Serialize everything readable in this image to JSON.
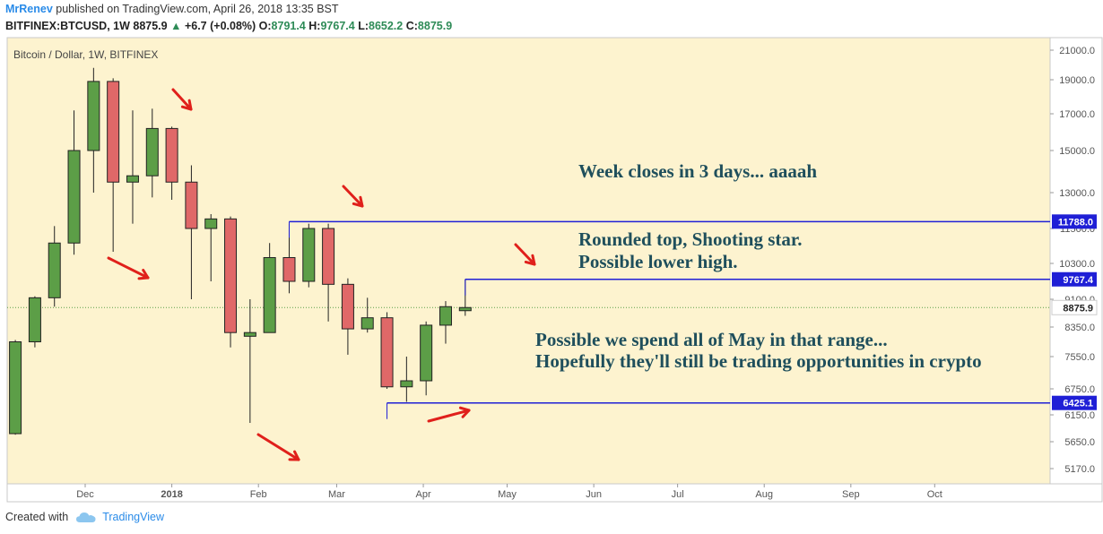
{
  "header": {
    "user": "MrRenev",
    "published": "published on TradingView.com, April 26, 2018 13:35 BST",
    "symbol": "BITFINEX:BTCUSD, 1W",
    "price": "8875.9",
    "change": "+6.7 (+0.08%)",
    "o_label": "O:",
    "o": "8791.4",
    "h_label": "H:",
    "h": "9767.4",
    "l_label": "L:",
    "l": "8652.2",
    "c_label": "C:",
    "c": "8875.9"
  },
  "footer": {
    "created_with": "Created with",
    "brand": "TradingView"
  },
  "colors": {
    "background": "#fdf3cf",
    "up": "#5c9e47",
    "down": "#e06868",
    "level_line": "#1f1fd6",
    "annotation_text": "#1f4f5c",
    "arrow": "#e0201b"
  },
  "chart_data": {
    "type": "candlestick",
    "title": "Bitcoin / Dollar, 1W, BITFINEX",
    "y_ticks": [
      5170,
      5650,
      6150,
      6750,
      7550,
      8350,
      9100,
      10300,
      11500,
      13000,
      15000,
      17000,
      19000,
      21000
    ],
    "y_tick_labels": [
      "5170.0",
      "5650.0",
      "6150.0",
      "6750.0",
      "7550.0",
      "8350.0",
      "9100.0",
      "10300.0",
      "11500.0",
      "13000.0",
      "15000.0",
      "17000.0",
      "19000.0",
      "21000.0"
    ],
    "x_labels": [
      {
        "label": "Dec",
        "date": "2017-12-01"
      },
      {
        "label": "2018",
        "date": "2018-01-01"
      },
      {
        "label": "Feb",
        "date": "2018-02-01"
      },
      {
        "label": "Mar",
        "date": "2018-03-01"
      },
      {
        "label": "Apr",
        "date": "2018-04-01"
      },
      {
        "label": "May",
        "date": "2018-05-01"
      },
      {
        "label": "Jun",
        "date": "2018-06-01"
      },
      {
        "label": "Jul",
        "date": "2018-07-01"
      },
      {
        "label": "Aug",
        "date": "2018-08-01"
      },
      {
        "label": "Sep",
        "date": "2018-09-01"
      },
      {
        "label": "Oct",
        "date": "2018-10-01"
      }
    ],
    "candles": [
      {
        "date": "2017-11-06",
        "open": 5800,
        "high": 8000,
        "low": 5780,
        "close": 7950
      },
      {
        "date": "2017-11-13",
        "open": 7950,
        "high": 9200,
        "low": 7800,
        "close": 9150
      },
      {
        "date": "2017-11-20",
        "open": 9150,
        "high": 11600,
        "low": 8900,
        "close": 11000
      },
      {
        "date": "2017-11-27",
        "open": 11000,
        "high": 17200,
        "low": 10600,
        "close": 15000
      },
      {
        "date": "2017-12-04",
        "open": 15000,
        "high": 19800,
        "low": 13000,
        "close": 18900
      },
      {
        "date": "2017-12-11",
        "open": 18900,
        "high": 19100,
        "low": 10700,
        "close": 13500
      },
      {
        "date": "2017-12-18",
        "open": 13500,
        "high": 17200,
        "low": 11700,
        "close": 13800
      },
      {
        "date": "2017-12-25",
        "open": 13800,
        "high": 17300,
        "low": 12800,
        "close": 16200
      },
      {
        "date": "2018-01-01",
        "open": 16200,
        "high": 16300,
        "low": 12700,
        "close": 13500
      },
      {
        "date": "2018-01-08",
        "open": 13500,
        "high": 14300,
        "low": 9100,
        "close": 11500
      },
      {
        "date": "2018-01-15",
        "open": 11500,
        "high": 12100,
        "low": 9700,
        "close": 11900
      },
      {
        "date": "2018-01-22",
        "open": 11900,
        "high": 12000,
        "low": 7800,
        "close": 8200
      },
      {
        "date": "2018-01-29",
        "open": 8100,
        "high": 9100,
        "low": 6000,
        "close": 8200
      },
      {
        "date": "2018-02-05",
        "open": 8200,
        "high": 11000,
        "low": 8200,
        "close": 10500
      },
      {
        "date": "2018-02-12",
        "open": 10500,
        "high": 11700,
        "low": 9300,
        "close": 9700
      },
      {
        "date": "2018-02-19",
        "open": 9700,
        "high": 11700,
        "low": 9500,
        "close": 11500
      },
      {
        "date": "2018-02-26",
        "open": 11500,
        "high": 11700,
        "low": 8500,
        "close": 9600
      },
      {
        "date": "2018-03-05",
        "open": 9600,
        "high": 9800,
        "low": 7600,
        "close": 8300
      },
      {
        "date": "2018-03-12",
        "open": 8300,
        "high": 9150,
        "low": 8200,
        "close": 8600
      },
      {
        "date": "2018-03-19",
        "open": 8600,
        "high": 8750,
        "low": 6750,
        "close": 6800
      },
      {
        "date": "2018-03-26",
        "open": 6800,
        "high": 7550,
        "low": 6450,
        "close": 6950
      },
      {
        "date": "2018-04-02",
        "open": 6950,
        "high": 8500,
        "low": 6600,
        "close": 8400
      },
      {
        "date": "2018-04-09",
        "open": 8400,
        "high": 9050,
        "low": 7900,
        "close": 8900
      },
      {
        "date": "2018-04-16",
        "open": 8791.4,
        "high": 9767.4,
        "low": 8652.2,
        "close": 8875.9
      }
    ],
    "current_price": 8875.9,
    "levels": [
      {
        "value": 11788.0,
        "label": "11788.0",
        "from_date": "2018-02-12"
      },
      {
        "value": 9767.4,
        "label": "9767.4",
        "from_date": "2018-04-16"
      },
      {
        "value": 6425.1,
        "label": "6425.1",
        "from_date": "2018-03-19"
      }
    ],
    "annotations": [
      {
        "text": "Week closes in 3 days... aaaah"
      },
      {
        "text": "Rounded top, Shooting star."
      },
      {
        "text": "Possible lower high."
      },
      {
        "text": "Possible we spend all of May in that range..."
      },
      {
        "text": "Hopefully they'll still be trading opportunities in crypto"
      }
    ]
  }
}
